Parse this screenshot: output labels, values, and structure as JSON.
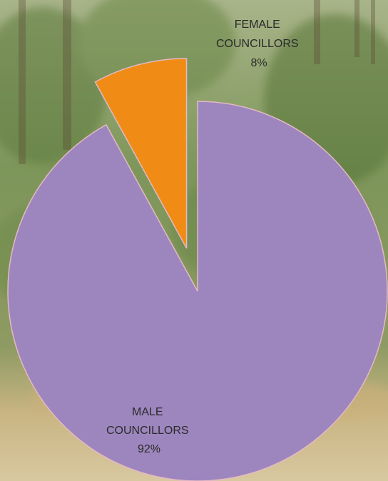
{
  "chart_data": {
    "type": "pie",
    "title": "",
    "slices": [
      {
        "label_lines": [
          "MALE",
          "COUNCILLORS"
        ],
        "value": 92,
        "value_label": "92%",
        "color": "#9d86bd",
        "exploded": false
      },
      {
        "label_lines": [
          "FEMALE",
          "COUNCILLORS"
        ],
        "value": 8,
        "value_label": "8%",
        "color": "#f08c16",
        "exploded": true
      }
    ],
    "legend": "none",
    "slice_edge_color": "#e4b9c4"
  },
  "background": {
    "description_tone": "forest photo",
    "sky_color": "#b9c49a",
    "foliage_color": "#6f8a4c",
    "ground_color": "#d2b88a"
  },
  "label_color": "#2a2a2a"
}
